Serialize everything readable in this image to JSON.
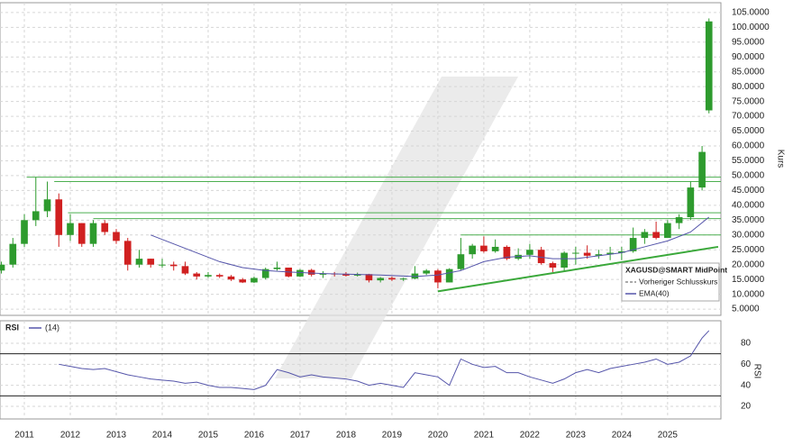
{
  "chart_data": {
    "type": "candlestick",
    "x": [
      2010.5,
      2010.75,
      2011.0,
      2011.25,
      2011.5,
      2011.75,
      2012.0,
      2012.25,
      2012.5,
      2012.75,
      2013.0,
      2013.25,
      2013.5,
      2013.75,
      2014.0,
      2014.25,
      2014.5,
      2014.75,
      2015.0,
      2015.25,
      2015.5,
      2015.75,
      2016.0,
      2016.25,
      2016.5,
      2016.75,
      2017.0,
      2017.25,
      2017.5,
      2017.75,
      2018.0,
      2018.25,
      2018.5,
      2018.75,
      2019.0,
      2019.25,
      2019.5,
      2019.75,
      2020.0,
      2020.25,
      2020.5,
      2020.75,
      2021.0,
      2021.25,
      2021.5,
      2021.75,
      2022.0,
      2022.25,
      2022.5,
      2022.75,
      2023.0,
      2023.25,
      2023.5,
      2023.75,
      2024.0,
      2024.25,
      2024.5,
      2024.75,
      2025.0,
      2025.25,
      2025.5,
      2025.75,
      2025.9
    ],
    "open": [
      18,
      20,
      27,
      35,
      38,
      42,
      30,
      34,
      27,
      34,
      31,
      28,
      20,
      22,
      20,
      20,
      19.5,
      17,
      16,
      16.5,
      16,
      15,
      14,
      15.5,
      18.5,
      19,
      16,
      18.2,
      16.6,
      17,
      16.9,
      16.3,
      16.8,
      14.7,
      15.5,
      15,
      15.3,
      17,
      18,
      14,
      18.5,
      23.5,
      26.4,
      24.5,
      26,
      22,
      23.3,
      25,
      20.5,
      19,
      24,
      24,
      23,
      23.5,
      24,
      24.5,
      29,
      31,
      29,
      34,
      36,
      46,
      72
    ],
    "close": [
      20,
      27,
      35,
      38,
      42,
      30,
      34,
      27,
      34,
      31,
      28,
      20,
      22,
      20,
      20,
      19.5,
      17,
      16,
      16.5,
      16,
      15,
      14,
      15.5,
      18.5,
      19,
      16,
      18.2,
      16.6,
      17,
      16.9,
      16.3,
      16.8,
      14.7,
      15.5,
      15,
      15.3,
      17,
      18,
      14,
      18.5,
      23.5,
      26.4,
      24.5,
      26,
      22,
      23.3,
      25,
      20.5,
      19,
      24,
      24,
      23,
      23.5,
      24,
      24.5,
      29,
      31,
      29,
      34,
      36,
      46,
      58,
      102
    ],
    "high": [
      21,
      29,
      37,
      49.5,
      48,
      44,
      37,
      34,
      35,
      35,
      32,
      29,
      25,
      22,
      22,
      21,
      21,
      17.5,
      17.5,
      17,
      16.5,
      15.5,
      16,
      19,
      21,
      19,
      18.5,
      18.6,
      17.8,
      17.5,
      17.5,
      17.3,
      16.9,
      15.8,
      16,
      15.6,
      19.5,
      18.5,
      18.5,
      18.8,
      29,
      27,
      29.5,
      28.5,
      26.5,
      25.5,
      27,
      26,
      21,
      24.5,
      26,
      26.5,
      25,
      26,
      26,
      32.5,
      32,
      34.5,
      35,
      37,
      48,
      60,
      103
    ],
    "low": [
      17,
      19,
      26,
      33,
      36,
      26,
      28,
      26,
      26,
      30,
      27,
      18,
      19,
      19,
      19,
      18,
      16.5,
      15,
      15.5,
      15.5,
      14.5,
      13.8,
      13.8,
      15,
      18,
      15.7,
      15.8,
      16,
      15.5,
      16,
      16,
      16,
      14,
      14,
      14.5,
      14.5,
      15,
      16.5,
      12,
      14,
      18,
      22,
      24,
      24,
      21.5,
      21.5,
      22,
      20,
      17.5,
      18,
      20,
      22,
      22,
      21.5,
      21.5,
      24,
      27,
      28.5,
      29,
      32,
      35,
      45,
      71
    ],
    "ema": {
      "name": "EMA(40)",
      "color": "#5555aa",
      "x": [
        2013.75,
        2014.25,
        2014.75,
        2015.25,
        2015.75,
        2016.25,
        2016.75,
        2017.5,
        2018.0,
        2018.75,
        2019.5,
        2020.0,
        2020.5,
        2021.0,
        2021.5,
        2022.0,
        2022.5,
        2023.0,
        2023.5,
        2024.0,
        2024.5,
        2025.0,
        2025.5,
        2025.9
      ],
      "values": [
        30,
        27,
        24,
        21,
        19,
        18,
        17.5,
        17,
        16.8,
        16.5,
        16,
        16.5,
        18,
        21,
        22.5,
        23,
        22,
        22,
        23,
        24,
        26,
        28,
        31,
        36
      ]
    },
    "levels": [
      {
        "y": 49.5,
        "x0": 2011.05
      },
      {
        "y": 48,
        "x0": 2011.65
      },
      {
        "y": 37.5,
        "x0": 2011.95
      },
      {
        "y": 35.5,
        "x0": 2012.5
      },
      {
        "y": 30,
        "x0": 2020.5
      }
    ],
    "trendline": {
      "x": [
        2020.0,
        2026.1
      ],
      "y": [
        11,
        26
      ]
    },
    "legend": [
      "XAGUSD@SMART MidPoint",
      "Vorheriger Schlusskurs",
      "EMA(40)"
    ],
    "y_label": "Kurs",
    "xlim": [
      2010.47,
      2026.16
    ],
    "xticks": [
      2011,
      2012,
      2013,
      2014,
      2015,
      2016,
      2017,
      2018,
      2019,
      2020,
      2021,
      2022,
      2023,
      2024,
      2025
    ],
    "ylim": [
      2.9,
      108.3
    ],
    "yticks": [
      {
        "value": 5,
        "label": "5.0000"
      },
      {
        "value": 10,
        "label": "10.0000"
      },
      {
        "value": 15,
        "label": "15.0000"
      },
      {
        "value": 20,
        "label": "20.0000"
      },
      {
        "value": 25,
        "label": "25.0000"
      },
      {
        "value": 30,
        "label": "30.0000"
      },
      {
        "value": 35,
        "label": "35.0000"
      },
      {
        "value": 40,
        "label": "40.0000"
      },
      {
        "value": 45,
        "label": "45.0000"
      },
      {
        "value": 50,
        "label": "50.0000"
      },
      {
        "value": 55,
        "label": "55.0000"
      },
      {
        "value": 60,
        "label": "60.0000"
      },
      {
        "value": 65,
        "label": "65.0000"
      },
      {
        "value": 70,
        "label": "70.0000"
      },
      {
        "value": 75,
        "label": "75.0000"
      },
      {
        "value": 80,
        "label": "80.0000"
      },
      {
        "value": 85,
        "label": "85.0000"
      },
      {
        "value": 90,
        "label": "90.0000"
      },
      {
        "value": 95,
        "label": "95.0000"
      },
      {
        "value": 100,
        "label": "100.0000"
      },
      {
        "value": 105,
        "label": "105.0000"
      }
    ],
    "rsi": {
      "title": "RSI",
      "name": "(14)",
      "y_label": "RSI",
      "color": "#5555aa",
      "x": [
        2011.75,
        2012.0,
        2012.25,
        2012.5,
        2012.75,
        2013.0,
        2013.25,
        2013.5,
        2013.75,
        2014.0,
        2014.25,
        2014.5,
        2014.75,
        2015.0,
        2015.25,
        2015.5,
        2015.75,
        2016.0,
        2016.25,
        2016.5,
        2016.75,
        2017.0,
        2017.25,
        2017.5,
        2017.75,
        2018.0,
        2018.25,
        2018.5,
        2018.75,
        2019.0,
        2019.25,
        2019.5,
        2019.75,
        2020.0,
        2020.25,
        2020.5,
        2020.75,
        2021.0,
        2021.25,
        2021.5,
        2021.75,
        2022.0,
        2022.25,
        2022.5,
        2022.75,
        2023.0,
        2023.25,
        2023.5,
        2023.75,
        2024.0,
        2024.25,
        2024.5,
        2024.75,
        2025.0,
        2025.25,
        2025.5,
        2025.75,
        2025.9
      ],
      "values": [
        60,
        58,
        56,
        55,
        56,
        53,
        50,
        48,
        46,
        45,
        44,
        42,
        43,
        40,
        38,
        38,
        37,
        36,
        40,
        55,
        52,
        48,
        50,
        48,
        47,
        46,
        44,
        40,
        42,
        40,
        38,
        52,
        50,
        48,
        40,
        65,
        60,
        57,
        58,
        52,
        52,
        48,
        45,
        42,
        46,
        52,
        55,
        52,
        56,
        58,
        60,
        62,
        65,
        60,
        62,
        68,
        85,
        92
      ],
      "ylim": [
        8,
        101.4
      ],
      "yticks": [
        20,
        40,
        60,
        80
      ],
      "levels": [
        70,
        30
      ]
    }
  }
}
